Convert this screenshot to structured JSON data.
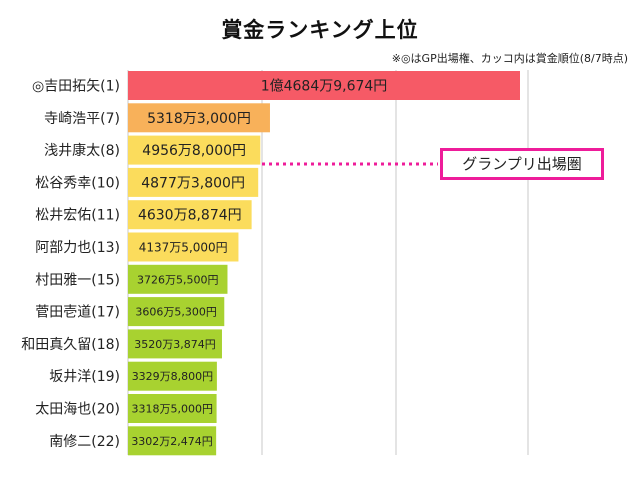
{
  "page": {
    "title": "賞金ランキング上位",
    "note": "※◎はGP出場権、カッコ内は賞金順位(8/7時点)",
    "callout": "グランプリ出場圏"
  },
  "chart_data": {
    "type": "bar",
    "orientation": "horizontal",
    "title": "賞金ランキング上位",
    "unit": "円",
    "grid": true,
    "categories": [
      "◎吉田拓矢(1)",
      "寺崎浩平(7)",
      "浅井康太(8)",
      "松谷秀幸(10)",
      "松井宏佑(11)",
      "阿部力也(13)",
      "村田雅一(15)",
      "菅田壱道(17)",
      "和田真久留(18)",
      "坂井洋(19)",
      "太田海也(20)",
      "南修二(22)"
    ],
    "values": [
      146849674,
      53183000,
      49568000,
      48773800,
      46308874,
      41375000,
      37265500,
      36065300,
      35203874,
      33298800,
      33185000,
      33022474
    ],
    "labels": [
      "1億4684万9,674円",
      "5318万3,000円",
      "4956万8,000円",
      "4877万3,800円",
      "4630万8,874円",
      "4137万5,000円",
      "3726万5,500円",
      "3606万5,300円",
      "3520万3,874円",
      "3329万8,800円",
      "3318万5,000円",
      "3302万2,474円"
    ],
    "colors": [
      "#f65a66",
      "#f8b15a",
      "#fbdc5c",
      "#fbdc5c",
      "#fbdc5c",
      "#fbdc5c",
      "#a8d230",
      "#a8d230",
      "#a8d230",
      "#a8d230",
      "#a8d230",
      "#a8d230"
    ],
    "highlight_color": "#ee1c9a"
  }
}
